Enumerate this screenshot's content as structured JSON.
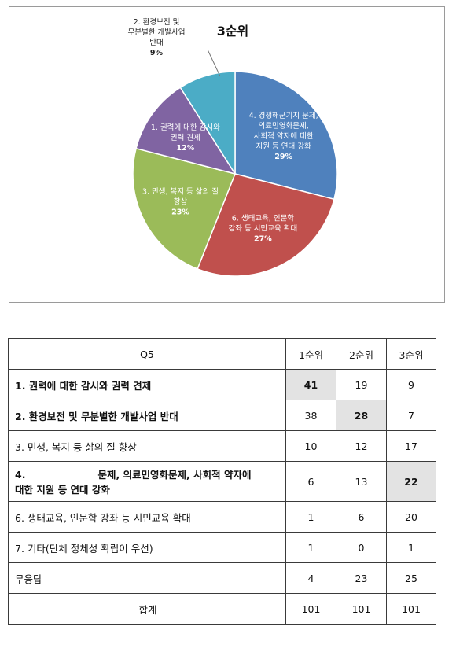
{
  "chart_data": {
    "type": "pie",
    "title": "3순위",
    "slices": [
      {
        "label_lines": [
          "4. 경쟁해군기지 문제,",
          "의료민영화문제,",
          "사회적 약자에 대한",
          "지원 등 연대 강화"
        ],
        "percent_label": "29%",
        "value": 29,
        "color": "#4f81bd",
        "label_position": "inside"
      },
      {
        "label_lines": [
          "6. 생태교육, 인문학",
          "강좌 등 시민교육 확대"
        ],
        "percent_label": "27%",
        "value": 27,
        "color": "#c0504d",
        "label_position": "inside"
      },
      {
        "label_lines": [
          "3. 민생, 복지 등 삶의 질",
          "향상"
        ],
        "percent_label": "23%",
        "value": 23,
        "color": "#9bbb59",
        "label_position": "inside"
      },
      {
        "label_lines": [
          "1. 권력에 대한 감시와",
          "권력 견제"
        ],
        "percent_label": "12%",
        "value": 12,
        "color": "#8064a2",
        "label_position": "inside"
      },
      {
        "label_lines": [
          "2. 환경보전 및",
          "무분별한 개발사업",
          "반대"
        ],
        "percent_label": "9%",
        "value": 9,
        "color": "#4bacc6",
        "label_position": "outside"
      }
    ]
  },
  "table": {
    "header": [
      "Q5",
      "1순위",
      "2순위",
      "3순위"
    ],
    "rows": [
      {
        "label": "1. 권력에 대한 감시와 권력 견제",
        "values": [
          "41",
          "19",
          "9"
        ],
        "bold": true,
        "highlight": 0
      },
      {
        "label": "2. 환경보전 및 무분별한 개발사업 반대",
        "values": [
          "38",
          "28",
          "7"
        ],
        "bold": true,
        "highlight": 1
      },
      {
        "label": "3. 민생, 복지 등 삶의 질 향상",
        "values": [
          "10",
          "12",
          "17"
        ],
        "bold": false,
        "highlight": -1
      },
      {
        "label_a": "4.",
        "label_b": "문제, 의료민영화문제, 사회적 약자에",
        "label_c": "대한 지원 등 연대 강화",
        "values": [
          "6",
          "13",
          "22"
        ],
        "bold": true,
        "highlight": 2
      },
      {
        "label": "6. 생태교육, 인문학 강좌 등 시민교육 확대",
        "values": [
          "1",
          "6",
          "20"
        ],
        "bold": false,
        "highlight": -1
      },
      {
        "label": "7. 기타(단체 정체성 확립이 우선)",
        "values": [
          "1",
          "0",
          "1"
        ],
        "bold": false,
        "highlight": -1
      },
      {
        "label": "무응답",
        "values": [
          "4",
          "23",
          "25"
        ],
        "bold": false,
        "highlight": -1
      },
      {
        "label": "합계",
        "values": [
          "101",
          "101",
          "101"
        ],
        "bold": false,
        "highlight": -1,
        "center_label": true
      }
    ]
  }
}
